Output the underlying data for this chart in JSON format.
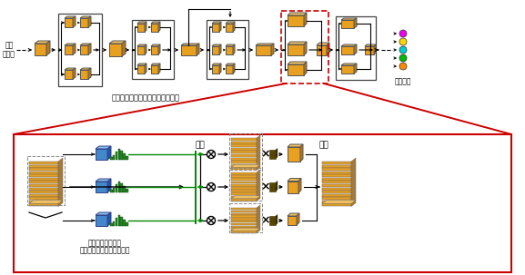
{
  "bg_color": "#ffffff",
  "top_label": "入力\nデータ",
  "bottom_right_label": "認識結果",
  "top_caption": "多様な分岐・合流のあるモデル例",
  "bottom_caption1": "各分岐に対応する",
  "bottom_caption2": "アテンション・モジュール",
  "bunki_label": "分岐",
  "goryuu_label": "合流",
  "orange": "#E8A020",
  "orange_dark": "#B87818",
  "orange_top": "#F0C060",
  "blue": "#4488CC",
  "green": "#008800",
  "red": "#CC0000",
  "result_colors": [
    "#EE00EE",
    "#FFD700",
    "#00CCCC",
    "#00BB00",
    "#FF8800"
  ]
}
